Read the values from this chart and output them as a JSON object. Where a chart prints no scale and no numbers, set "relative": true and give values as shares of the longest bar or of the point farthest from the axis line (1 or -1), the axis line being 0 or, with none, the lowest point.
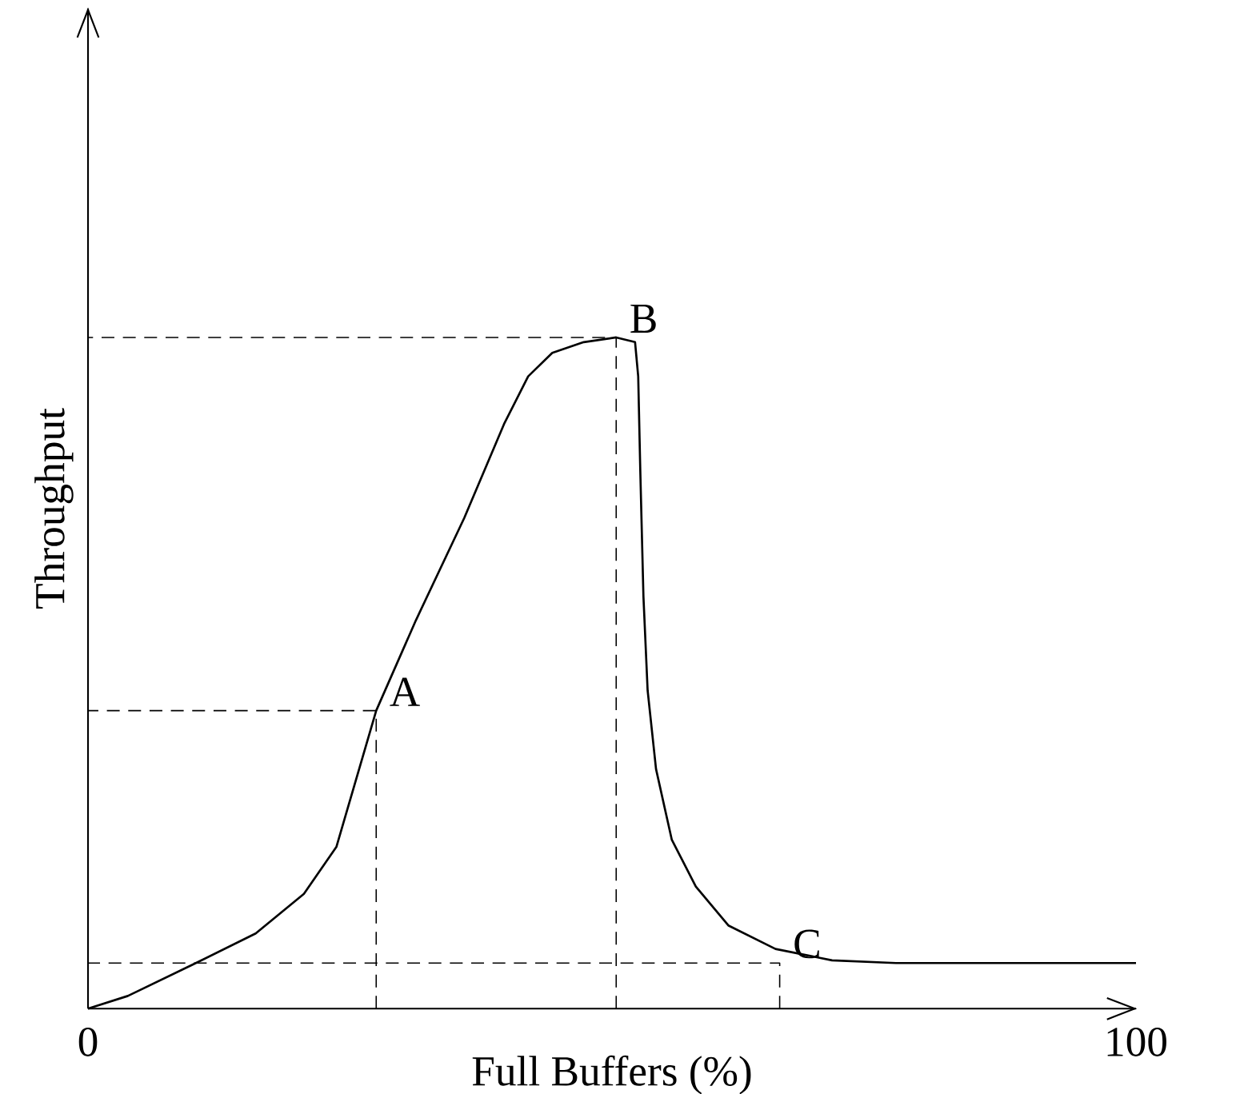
{
  "chart_data": {
    "type": "line",
    "xlabel": "Full Buffers (%)",
    "ylabel": "Throughput",
    "relative": true,
    "tick_labels": "x",
    "xlim": [
      0,
      100
    ],
    "xticks": [
      0,
      100
    ],
    "x": [
      0,
      3.8,
      9.9,
      16.0,
      20.6,
      23.7,
      27.5,
      31.3,
      35.9,
      39.7,
      42.0,
      44.3,
      47.3,
      50.4,
      52.2,
      52.5,
      52.7,
      53.0,
      53.4,
      54.2,
      55.7,
      58.0,
      61.1,
      65.6,
      71.0,
      77.1,
      100
    ],
    "series": [
      {
        "color": "#000000",
        "values": [
          0,
          0.019,
          0.065,
          0.112,
          0.171,
          0.241,
          0.444,
          0.579,
          0.731,
          0.871,
          0.942,
          0.977,
          0.993,
          1.0,
          0.993,
          0.942,
          0.801,
          0.614,
          0.474,
          0.357,
          0.252,
          0.182,
          0.124,
          0.089,
          0.072,
          0.068,
          0.068
        ]
      },
      {
        "color": "#000000",
        "line_style": "dashed",
        "x": [
          27.5,
          27.5,
          0
        ],
        "values": [
          0,
          0.444,
          0.444
        ]
      },
      {
        "color": "#000000",
        "line_style": "dashed",
        "x": [
          50.4,
          50.4,
          0
        ],
        "values": [
          0,
          1.0,
          1.0
        ]
      },
      {
        "color": "#000000",
        "line_style": "dashed",
        "x": [
          66.0,
          66.0,
          0
        ],
        "values": [
          0,
          0.068,
          0.068
        ]
      }
    ],
    "annotations": [
      {
        "text": "A",
        "x": 27.5,
        "y": 0.444
      },
      {
        "text": "B",
        "x": 50.4,
        "y": 1.0
      },
      {
        "text": "C",
        "x": 66.0,
        "y": 0.068
      }
    ]
  }
}
